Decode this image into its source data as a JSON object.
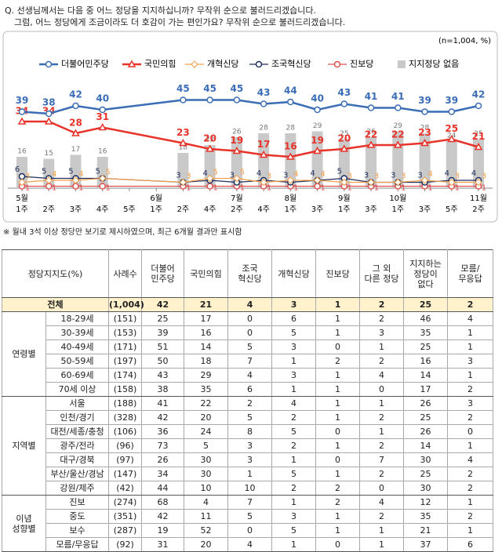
{
  "header": {
    "question": [
      "Q. 선생님께서는 다음 중 어느 정당을 지지하십니까? 무작위 순으로 불러드리겠습니다.",
      "그럼, 어느 정당에게 조금이라도 더 호감이 가는 편인가요? 무작위 순으로 불러드리겠습니다."
    ],
    "note": "(n=1,004, %)"
  },
  "chart_data": {
    "type": "line",
    "x": [
      0,
      1,
      2,
      3,
      6,
      7,
      8,
      9,
      10,
      11,
      12,
      13,
      14,
      15,
      16,
      17
    ],
    "xlim": [
      0,
      17
    ],
    "xticks": [
      {
        "value": 0,
        "label": "1주",
        "month": "5월"
      },
      {
        "value": 1,
        "label": "2주"
      },
      {
        "value": 2,
        "label": "3주"
      },
      {
        "value": 3,
        "label": "4주"
      },
      {
        "value": 4,
        "label": "5주"
      },
      {
        "value": 5,
        "label": "1주",
        "month": "6월"
      },
      {
        "value": 6,
        "label": "2주"
      },
      {
        "value": 7,
        "label": "4주"
      },
      {
        "value": 8,
        "label": "2주",
        "month": "7월"
      },
      {
        "value": 9,
        "label": "4주"
      },
      {
        "value": 10,
        "label": "1주",
        "month": "8월"
      },
      {
        "value": 11,
        "label": "3주"
      },
      {
        "value": 12,
        "label": "1주",
        "month": "9월"
      },
      {
        "value": 13,
        "label": "3주"
      },
      {
        "value": 14,
        "label": "1주",
        "month": "10월"
      },
      {
        "value": 15,
        "label": "3주"
      },
      {
        "value": 16,
        "label": "5주"
      },
      {
        "value": 17,
        "label": "2주",
        "month": "11월"
      }
    ],
    "ylim": [
      0,
      46
    ],
    "series": [
      {
        "name": "더불어민주당",
        "color": "#3a6db5",
        "marker": "circle",
        "values": [
          39,
          38,
          42,
          40,
          45,
          45,
          45,
          43,
          44,
          40,
          43,
          41,
          41,
          39,
          39,
          42
        ]
      },
      {
        "name": "국민의힘",
        "color": "#e8332a",
        "marker": "triangle",
        "values": [
          34,
          34,
          28,
          31,
          23,
          20,
          19,
          17,
          16,
          19,
          20,
          22,
          22,
          23,
          25,
          21
        ]
      },
      {
        "name": "개혁신당",
        "color": "#f5a04a",
        "marker": "diamond",
        "values": [
          3,
          4,
          4,
          5,
          3,
          5,
          5,
          3,
          4,
          4,
          3,
          3,
          3,
          4,
          3,
          3
        ]
      },
      {
        "name": "조국혁신당",
        "color": "#1f2f5e",
        "marker": "circle",
        "values": [
          6,
          5,
          5,
          5,
          3,
          4,
          3,
          4,
          3,
          4,
          5,
          3,
          3,
          3,
          4,
          4
        ]
      },
      {
        "name": "진보당",
        "color": "#e05050",
        "marker": "circle",
        "values": [
          1,
          1,
          1,
          1,
          1,
          1,
          1,
          1,
          1,
          1,
          1,
          1,
          1,
          1,
          1,
          1
        ]
      },
      {
        "name": "지지정당 없음",
        "color": "#c9c9c9",
        "type": "bar",
        "values": [
          16,
          15,
          17,
          16,
          18,
          22,
          26,
          28,
          28,
          29,
          25,
          26,
          29,
          28,
          24,
          25
        ]
      }
    ]
  },
  "footnote": "※ 월내 3석 이상 정당만 보기로 제시하였으며, 최근 6개월 결과만 표시함",
  "table": {
    "corner": "정당지지도(%)",
    "columns": [
      [
        "사례수"
      ],
      [
        "더불어",
        "민주당"
      ],
      [
        "국민의힘"
      ],
      [
        "조국",
        "혁신당"
      ],
      [
        "개혁신당"
      ],
      [
        "진보당"
      ],
      [
        "그 외",
        "다른 정당"
      ],
      [
        "지지하는",
        "정당이",
        "없다"
      ],
      [
        "모름/",
        "무응답"
      ]
    ],
    "total": {
      "label": "전체",
      "n": "(1,004)",
      "values": [
        42,
        21,
        4,
        3,
        1,
        2,
        25,
        2
      ]
    },
    "groups": [
      {
        "name": [
          "연령별"
        ],
        "rows": [
          {
            "label": "18-29세",
            "n": "(151)",
            "values": [
              25,
              17,
              0,
              6,
              1,
              2,
              46,
              4
            ]
          },
          {
            "label": "30-39세",
            "n": "(153)",
            "values": [
              39,
              16,
              0,
              5,
              1,
              3,
              35,
              1
            ]
          },
          {
            "label": "40-49세",
            "n": "(171)",
            "values": [
              51,
              14,
              5,
              3,
              0,
              1,
              25,
              1
            ]
          },
          {
            "label": "50-59세",
            "n": "(197)",
            "values": [
              50,
              18,
              7,
              1,
              2,
              2,
              16,
              3
            ]
          },
          {
            "label": "60-69세",
            "n": "(174)",
            "values": [
              43,
              29,
              4,
              3,
              1,
              4,
              14,
              1
            ]
          },
          {
            "label": "70세 이상",
            "n": "(158)",
            "values": [
              38,
              35,
              6,
              1,
              1,
              0,
              17,
              2
            ]
          }
        ]
      },
      {
        "name": [
          "지역별"
        ],
        "rows": [
          {
            "label": "서울",
            "n": "(188)",
            "values": [
              41,
              22,
              2,
              4,
              1,
              1,
              26,
              3
            ]
          },
          {
            "label": "인천/경기",
            "n": "(328)",
            "values": [
              42,
              20,
              5,
              2,
              1,
              2,
              25,
              2
            ]
          },
          {
            "label": "대전/세종/충청",
            "n": "(106)",
            "values": [
              36,
              24,
              8,
              5,
              0,
              1,
              26,
              0
            ]
          },
          {
            "label": "광주/전라",
            "n": "(96)",
            "values": [
              73,
              5,
              3,
              2,
              1,
              2,
              14,
              1
            ]
          },
          {
            "label": "대구/경북",
            "n": "(97)",
            "values": [
              26,
              30,
              3,
              1,
              0,
              7,
              30,
              4
            ]
          },
          {
            "label": "부산/울산/경남",
            "n": "(147)",
            "values": [
              34,
              30,
              1,
              5,
              1,
              2,
              25,
              2
            ]
          },
          {
            "label": "강원/제주",
            "n": "(42)",
            "values": [
              44,
              10,
              10,
              2,
              2,
              0,
              30,
              2
            ]
          }
        ]
      },
      {
        "name": [
          "이념",
          "성향별"
        ],
        "rows": [
          {
            "label": "진보",
            "n": "(274)",
            "values": [
              68,
              4,
              7,
              1,
              2,
              4,
              12,
              1
            ]
          },
          {
            "label": "중도",
            "n": "(351)",
            "values": [
              42,
              11,
              5,
              3,
              1,
              2,
              35,
              2
            ]
          },
          {
            "label": "보수",
            "n": "(287)",
            "values": [
              19,
              52,
              0,
              5,
              1,
              1,
              21,
              1
            ]
          },
          {
            "label": "모름/무응답",
            "n": "(92)",
            "values": [
              31,
              20,
              4,
              1,
              0,
              1,
              37,
              6
            ]
          }
        ]
      }
    ]
  }
}
